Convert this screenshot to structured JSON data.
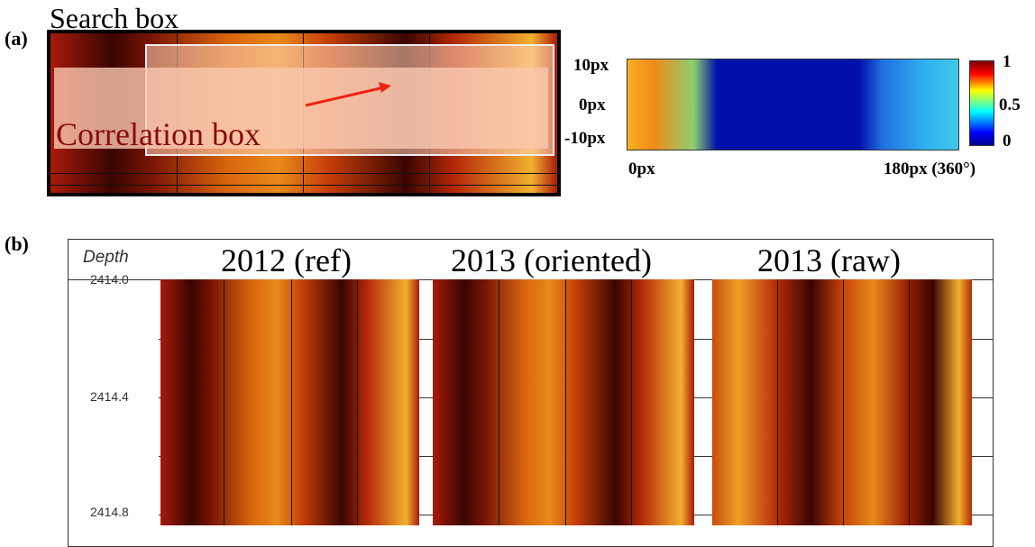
{
  "panel_a": {
    "label": "(a)",
    "search_box": "Search box",
    "correlation_box": "Correlation box",
    "map_y_labels": [
      "10px",
      "0px",
      "-10px"
    ],
    "map_x_labels": [
      "0px",
      "180px (360°)"
    ],
    "colorbar_labels": [
      "1",
      "0.5",
      "0"
    ]
  },
  "panel_b": {
    "label": "(b)",
    "depth_header": "Depth",
    "titles": [
      "2012 (ref)",
      "2013 (oriented)",
      "2013 (raw)"
    ],
    "depth_labels": [
      "2414.0",
      "2414.4",
      "2414.8"
    ]
  }
}
